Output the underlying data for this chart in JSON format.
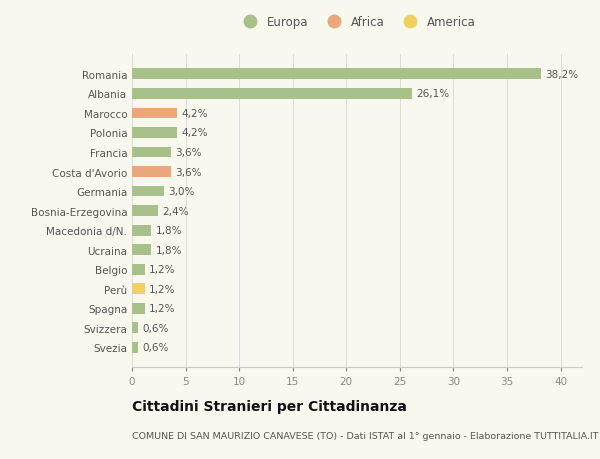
{
  "categories": [
    "Romania",
    "Albania",
    "Marocco",
    "Polonia",
    "Francia",
    "Costa d'Avorio",
    "Germania",
    "Bosnia-Erzegovina",
    "Macedonia d/N.",
    "Ucraina",
    "Belgio",
    "Perù",
    "Spagna",
    "Svizzera",
    "Svezia"
  ],
  "values": [
    38.2,
    26.1,
    4.2,
    4.2,
    3.6,
    3.6,
    3.0,
    2.4,
    1.8,
    1.8,
    1.2,
    1.2,
    1.2,
    0.6,
    0.6
  ],
  "labels": [
    "38,2%",
    "26,1%",
    "4,2%",
    "4,2%",
    "3,6%",
    "3,6%",
    "3,0%",
    "2,4%",
    "1,8%",
    "1,8%",
    "1,2%",
    "1,2%",
    "1,2%",
    "0,6%",
    "0,6%"
  ],
  "colors": [
    "#a8c08a",
    "#a8c08a",
    "#e8a87c",
    "#a8c08a",
    "#a8c08a",
    "#e8a87c",
    "#a8c08a",
    "#a8c08a",
    "#a8c08a",
    "#a8c08a",
    "#a8c08a",
    "#f0d060",
    "#a8c08a",
    "#a8c08a",
    "#a8c08a"
  ],
  "legend_labels": [
    "Europa",
    "Africa",
    "America"
  ],
  "legend_colors": [
    "#a8c08a",
    "#e8a87c",
    "#f0d060"
  ],
  "xlim": [
    0,
    42
  ],
  "xticks": [
    0,
    5,
    10,
    15,
    20,
    25,
    30,
    35,
    40
  ],
  "title": "Cittadini Stranieri per Cittadinanza",
  "subtitle": "COMUNE DI SAN MAURIZIO CANAVESE (TO) - Dati ISTAT al 1° gennaio - Elaborazione TUTTITALIA.IT",
  "background_color": "#f8f8ee",
  "bar_height": 0.55,
  "label_fontsize": 7.5,
  "tick_fontsize": 7.5,
  "title_fontsize": 10,
  "subtitle_fontsize": 6.8
}
